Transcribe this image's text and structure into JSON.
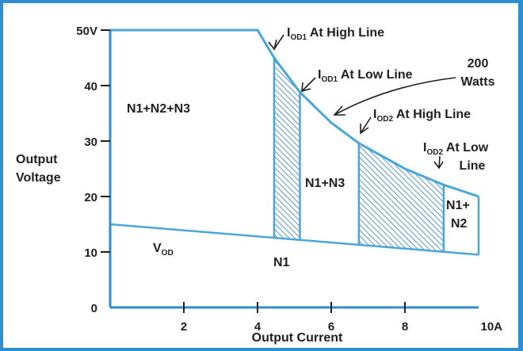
{
  "chart_data": {
    "type": "area",
    "xlabel": "Output Current",
    "ylabel_line1": "Output",
    "ylabel_line2": "Voltage",
    "x_ticks": [
      "2",
      "4",
      "6",
      "8",
      "10A"
    ],
    "y_ticks": [
      "0",
      "10",
      "20",
      "30",
      "40",
      "50V"
    ],
    "xlim": [
      0,
      10
    ],
    "ylim": [
      0,
      50
    ],
    "power_curve_watts": 200,
    "boundary": [
      {
        "x": 0,
        "y": 50
      },
      {
        "x": 4,
        "y": 50
      },
      {
        "x": 4.45,
        "y": 45
      },
      {
        "x": 5.15,
        "y": 38.8
      },
      {
        "x": 6,
        "y": 33.3
      },
      {
        "x": 6.75,
        "y": 29.6
      },
      {
        "x": 8,
        "y": 25
      },
      {
        "x": 9.05,
        "y": 22.1
      },
      {
        "x": 10,
        "y": 20
      }
    ],
    "vod_line": [
      {
        "x": 0,
        "y": 15
      },
      {
        "x": 10,
        "y": 9.5
      }
    ],
    "hatched_regions": [
      {
        "x_from": 4.45,
        "x_to": 5.15
      },
      {
        "x_from": 6.75,
        "x_to": 9.05
      }
    ],
    "region_labels": {
      "n123": "N1+N2+N3",
      "n13": "N1+N3",
      "n12_line1": "N1+",
      "n12_line2": "N2",
      "n1": "N1",
      "vod_main": "V",
      "vod_sub": "OD"
    },
    "annotations": {
      "iod1_high": {
        "main": "I",
        "sub": "OD1",
        "text": " At High Line"
      },
      "iod1_low": {
        "main": "I",
        "sub": "OD1",
        "text": " At Low Line"
      },
      "iod2_high": {
        "main": "I",
        "sub": "OD2",
        "text": " At High Line"
      },
      "iod2_low": {
        "main": "I",
        "sub": "OD2",
        "text": " At Low",
        "line2": "Line"
      },
      "watts_line1": "200",
      "watts_line2": "Watts"
    },
    "colors": {
      "frame": "#2d8fd0",
      "axis": "#2d8fd0",
      "boundary": "#4aa6d8",
      "hatch": "#2f7fbf",
      "text": "#1f1f1f"
    }
  }
}
